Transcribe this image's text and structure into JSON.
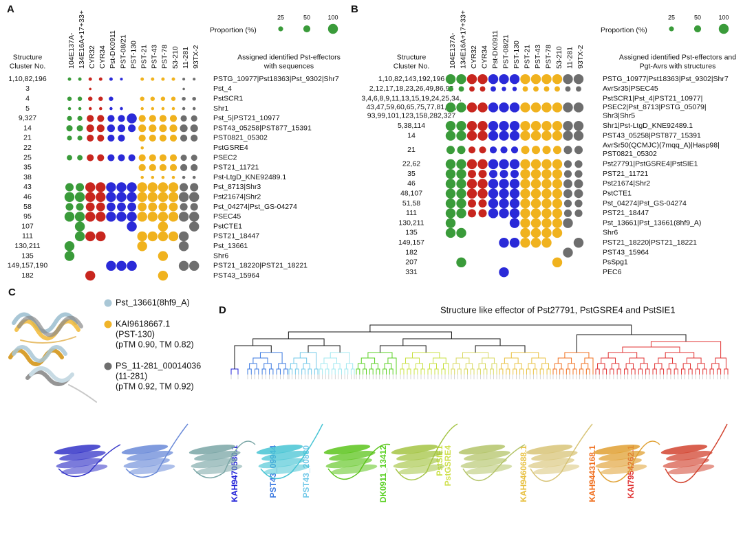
{
  "panel_labels": [
    "A",
    "B",
    "C",
    "D"
  ],
  "legend": {
    "title": "Proportion (%)",
    "sizes": [
      25,
      50,
      100
    ]
  },
  "columns": [
    "104E137A-",
    "134E16A+17+33+",
    "CYR32",
    "CYR34",
    "Pst-DK0911",
    "PST-08/21",
    "PST-130",
    "PST-21",
    "PST-43",
    "PST-78",
    "53-210",
    "11-281",
    "93TX-2"
  ],
  "column_colors": [
    "#3a9b3a",
    "#3a9b3a",
    "#c8261e",
    "#c8261e",
    "#2a2ad8",
    "#2a2ad8",
    "#2a2ad8",
    "#f0b21e",
    "#f0b21e",
    "#f0b21e",
    "#f0b21e",
    "#6e6e6e",
    "#6e6e6e"
  ],
  "panel_a": {
    "cluster_header": [
      "Structure",
      "Cluster No."
    ],
    "effector_header": [
      "Assigned identified Pst-effectors",
      "with sequences"
    ],
    "rows": [
      {
        "cluster": "1,10,82,196",
        "effector": "PSTG_10977|Pst18363|Pst_9302|Shr7",
        "values": [
          12,
          12,
          12,
          12,
          12,
          8,
          0,
          12,
          12,
          12,
          12,
          8,
          8
        ]
      },
      {
        "cluster": "3",
        "effector": "Pst_4",
        "values": [
          0,
          0,
          6,
          0,
          0,
          0,
          0,
          0,
          0,
          0,
          0,
          6,
          0
        ]
      },
      {
        "cluster": "4",
        "effector": "PstSCR1",
        "values": [
          20,
          20,
          20,
          20,
          20,
          0,
          0,
          20,
          20,
          20,
          20,
          15,
          15
        ]
      },
      {
        "cluster": "5",
        "effector": "Shr1",
        "values": [
          10,
          10,
          10,
          10,
          10,
          10,
          0,
          10,
          10,
          10,
          10,
          10,
          10
        ]
      },
      {
        "cluster": "9,327",
        "effector": "Pst_5|PST21_10977",
        "values": [
          25,
          25,
          50,
          50,
          50,
          50,
          100,
          50,
          50,
          50,
          50,
          40,
          40
        ]
      },
      {
        "cluster": "14",
        "effector": "PST43_05258|PST877_15391",
        "values": [
          40,
          40,
          60,
          60,
          60,
          60,
          60,
          60,
          60,
          60,
          60,
          60,
          60
        ]
      },
      {
        "cluster": "21",
        "effector": "PST0821_05302",
        "values": [
          25,
          25,
          50,
          50,
          50,
          50,
          0,
          50,
          50,
          50,
          50,
          50,
          50
        ]
      },
      {
        "cluster": "22",
        "effector": "PstGSRE4",
        "values": [
          0,
          0,
          0,
          0,
          0,
          0,
          0,
          10,
          0,
          0,
          0,
          0,
          0
        ]
      },
      {
        "cluster": "25",
        "effector": "PSEC2",
        "values": [
          30,
          30,
          50,
          50,
          50,
          50,
          50,
          50,
          50,
          50,
          50,
          40,
          40
        ]
      },
      {
        "cluster": "35",
        "effector": "PST21_11721",
        "values": [
          0,
          0,
          0,
          0,
          0,
          0,
          0,
          50,
          50,
          50,
          50,
          50,
          50
        ]
      },
      {
        "cluster": "38",
        "effector": "Pst-LtgD_KNE92489.1",
        "values": [
          0,
          0,
          0,
          0,
          0,
          0,
          0,
          10,
          10,
          10,
          10,
          10,
          10
        ]
      },
      {
        "cluster": "43",
        "effector": "Pst_8713|Shr3",
        "values": [
          70,
          70,
          100,
          100,
          100,
          100,
          100,
          100,
          100,
          100,
          100,
          70,
          70
        ]
      },
      {
        "cluster": "46",
        "effector": "Pst21674|Shr2",
        "values": [
          100,
          100,
          100,
          100,
          100,
          100,
          100,
          100,
          100,
          100,
          100,
          100,
          100
        ]
      },
      {
        "cluster": "58",
        "effector": "Pst_04274|Pst_GS-04274",
        "values": [
          60,
          60,
          80,
          80,
          80,
          80,
          80,
          80,
          80,
          80,
          80,
          60,
          60
        ]
      },
      {
        "cluster": "95",
        "effector": "PSEC45",
        "values": [
          100,
          100,
          100,
          100,
          100,
          100,
          100,
          100,
          100,
          100,
          100,
          100,
          100
        ]
      },
      {
        "cluster": "107",
        "effector": "PstCTE1",
        "values": [
          0,
          100,
          0,
          0,
          0,
          0,
          100,
          0,
          0,
          100,
          0,
          0,
          100
        ]
      },
      {
        "cluster": "111",
        "effector": "PST21_18447",
        "values": [
          0,
          100,
          100,
          100,
          0,
          0,
          0,
          100,
          100,
          100,
          100,
          100,
          0
        ]
      },
      {
        "cluster": "130,211",
        "effector": "Pst_13661",
        "values": [
          100,
          0,
          0,
          0,
          0,
          0,
          0,
          100,
          0,
          0,
          0,
          100,
          0
        ]
      },
      {
        "cluster": "135",
        "effector": "Shr6",
        "values": [
          100,
          0,
          0,
          0,
          0,
          0,
          0,
          0,
          0,
          100,
          0,
          0,
          0
        ]
      },
      {
        "cluster": "149,157,190",
        "effector": "PST21_18220|PST21_18221",
        "values": [
          0,
          0,
          0,
          0,
          100,
          100,
          100,
          0,
          0,
          0,
          0,
          100,
          100
        ]
      },
      {
        "cluster": "182",
        "effector": "PST43_15964",
        "values": [
          0,
          0,
          100,
          0,
          0,
          0,
          0,
          0,
          0,
          100,
          0,
          0,
          0
        ]
      }
    ]
  },
  "panel_b": {
    "cluster_header": [
      "Structure",
      "Cluster No."
    ],
    "effector_header": [
      "Assigned identified Pst-effectors and",
      "Pgt-Avrs with structures"
    ],
    "rows": [
      {
        "cluster": "1,10,82,143,192,196",
        "effector": "PSTG_10977|Pst18363|Pst_9302|Shr7",
        "values": [
          100,
          100,
          100,
          100,
          100,
          100,
          100,
          100,
          100,
          100,
          100,
          100,
          100
        ]
      },
      {
        "cluster": "2,12,17,18,23,26,49,86,95",
        "effector": "AvrSr35|PSEC45",
        "values": [
          30,
          30,
          30,
          30,
          30,
          20,
          20,
          30,
          30,
          30,
          30,
          30,
          30
        ]
      },
      {
        "cluster": [
          "3,4,6,8,9,11,13,15,19,24,25,34,",
          "43,47,59,60,65,75,77,81,91,",
          "93,99,101,123,158,282,327"
        ],
        "effector": [
          "PstSCR1|Pst_4|PST21_10977|",
          "PSEC2|Pst_8713|PSTG_05079|",
          "Shr3|Shr5"
        ],
        "values": [
          100,
          100,
          100,
          100,
          100,
          100,
          100,
          100,
          100,
          100,
          100,
          100,
          100
        ]
      },
      {
        "cluster": "5,38,114",
        "effector": "Shr1|Pst-LtgD_KNE92489.1",
        "values": [
          100,
          100,
          100,
          100,
          100,
          100,
          100,
          100,
          100,
          100,
          100,
          100,
          100
        ]
      },
      {
        "cluster": "14",
        "effector": "PST43_05258|PST877_15391",
        "values": [
          100,
          100,
          100,
          100,
          100,
          100,
          100,
          100,
          100,
          100,
          100,
          100,
          100
        ]
      },
      {
        "cluster": "21",
        "effector": [
          "AvrSr50(QCMJC)(7mqq_A)|Hasp98|",
          "PST0821_05302"
        ],
        "values": [
          70,
          70,
          50,
          50,
          50,
          50,
          50,
          70,
          70,
          70,
          70,
          70,
          70
        ]
      },
      {
        "cluster": "22,62",
        "effector": "Pst27791|PstGSRE4|PstSIE1",
        "values": [
          100,
          100,
          100,
          100,
          100,
          100,
          100,
          100,
          100,
          100,
          100,
          60,
          60
        ]
      },
      {
        "cluster": "35",
        "effector": "PST21_11721",
        "values": [
          100,
          100,
          70,
          70,
          70,
          70,
          70,
          100,
          100,
          100,
          100,
          60,
          60
        ]
      },
      {
        "cluster": "46",
        "effector": "Pst21674|Shr2",
        "values": [
          100,
          100,
          100,
          100,
          100,
          100,
          100,
          100,
          100,
          100,
          100,
          80,
          80
        ]
      },
      {
        "cluster": "48,107",
        "effector": "PstCTE1",
        "values": [
          100,
          100,
          100,
          100,
          100,
          100,
          100,
          100,
          100,
          100,
          100,
          80,
          80
        ]
      },
      {
        "cluster": "51,58",
        "effector": "Pst_04274|Pst_GS-04274",
        "values": [
          100,
          100,
          70,
          70,
          100,
          100,
          100,
          100,
          100,
          100,
          100,
          60,
          60
        ]
      },
      {
        "cluster": "111",
        "effector": "PST21_18447",
        "values": [
          100,
          100,
          70,
          70,
          100,
          100,
          100,
          100,
          100,
          100,
          100,
          60,
          60
        ]
      },
      {
        "cluster": "130,211",
        "effector": "Pst_13661|Pst_13661(8hf9_A)",
        "values": [
          100,
          0,
          0,
          0,
          0,
          0,
          100,
          100,
          100,
          100,
          100,
          100,
          0
        ]
      },
      {
        "cluster": "135",
        "effector": "Shr6",
        "values": [
          100,
          100,
          0,
          0,
          0,
          0,
          0,
          100,
          100,
          100,
          100,
          0,
          0
        ]
      },
      {
        "cluster": "149,157",
        "effector": "PST21_18220|PST21_18221",
        "values": [
          0,
          0,
          0,
          0,
          0,
          100,
          100,
          100,
          100,
          100,
          0,
          0,
          100
        ]
      },
      {
        "cluster": "182",
        "effector": "PST43_15964",
        "values": [
          0,
          0,
          0,
          0,
          0,
          0,
          0,
          0,
          0,
          0,
          0,
          100,
          0
        ]
      },
      {
        "cluster": "207",
        "effector": "PsSpg1",
        "values": [
          0,
          100,
          0,
          0,
          0,
          0,
          0,
          0,
          0,
          0,
          100,
          0,
          0
        ]
      },
      {
        "cluster": "331",
        "effector": "PEC6",
        "values": [
          0,
          0,
          0,
          0,
          0,
          100,
          0,
          0,
          0,
          0,
          0,
          0,
          0
        ]
      }
    ]
  },
  "panel_c": {
    "items": [
      {
        "color": "#a9c7d6",
        "lines": [
          "Pst_13661(8hf9_A)"
        ]
      },
      {
        "color": "#f0b429",
        "lines": [
          "KAI9618667.1",
          "(PST-130)",
          "(pTM 0.90, TM 0.82)"
        ]
      },
      {
        "color": "#6e6e6e",
        "lines": [
          "PS_11-281_00014036",
          "(11-281)",
          "(pTM 0.92, TM 0.92)"
        ]
      }
    ]
  },
  "panel_d": {
    "title": "Structure like effector of Pst27791, PstGSRE4 and PstSIE1",
    "labels": [
      {
        "text": "KAH9470580.1",
        "color": "#2222d8"
      },
      {
        "text": "PST43_09944",
        "color": "#3a78e0"
      },
      {
        "text": "PST43_20880",
        "color": "#70c8e8"
      },
      {
        "text": "DK0911_13412",
        "color": "#58d020"
      },
      {
        "text": "PstSIE1",
        "color": "#c8e040"
      },
      {
        "text": "PstGSRE4",
        "color": "#d0e050"
      },
      {
        "text": "KAH9460688.1",
        "color": "#e8c040"
      },
      {
        "text": "KAH9443168.1",
        "color": "#f07020"
      },
      {
        "text": "KAI7954262.1",
        "color": "#e03030"
      }
    ]
  }
}
